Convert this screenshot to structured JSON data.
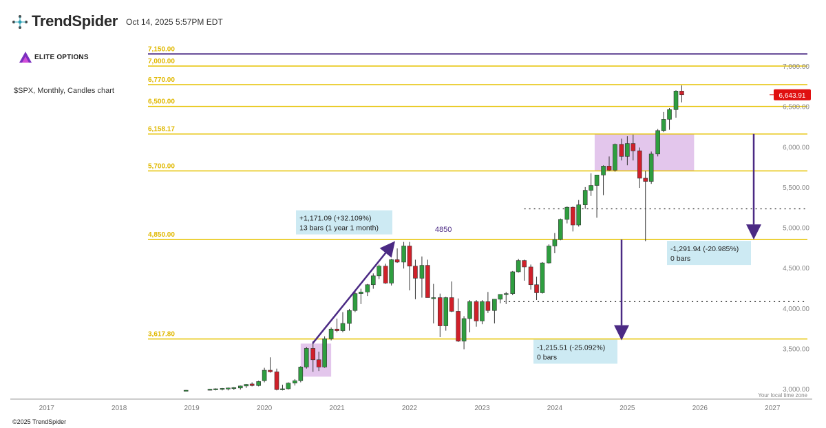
{
  "header": {
    "brand": "TrendSpider",
    "timestamp": "Oct 14, 2025 5:57PM EDT",
    "watermark": "ELITE OPTIONS",
    "symbol_line": "$SPX, Monthly, Candles chart",
    "copyright": "©2025 TrendSpider",
    "local_time_note": "Your local time zone"
  },
  "colors": {
    "up": "#2e9e3f",
    "down": "#d0202a",
    "level_line": "#e6c200",
    "top_line": "#4b2a84",
    "arrow": "#4b2a84",
    "price_tag": "#e01010",
    "measure_box": "#cdeaf3",
    "zone_fill": "#d9b3e6"
  },
  "chart_data": {
    "type": "candlestick",
    "title": "$SPX, Monthly, Candles chart",
    "x_ticks": [
      "2017",
      "2018",
      "2019",
      "2020",
      "2021",
      "2022",
      "2023",
      "2024",
      "2025",
      "2026",
      "2027"
    ],
    "y_ticks": [
      "7,000.00",
      "6,500.00",
      "6,000.00",
      "5,500.00",
      "5,000.00",
      "4,500.00",
      "4,000.00",
      "3,500.00",
      "3,000.00"
    ],
    "ylim": [
      2980,
      7230
    ],
    "last_price": "6,643.91",
    "levels": [
      {
        "value": 7150,
        "label": "7,150.00",
        "kind": "top"
      },
      {
        "value": 7000,
        "label": "7,000.00"
      },
      {
        "value": 6770,
        "label": "6,770.00"
      },
      {
        "value": 6500,
        "label": "6,500.00"
      },
      {
        "value": 6158.17,
        "label": "6,158.17"
      },
      {
        "value": 5700,
        "label": "5,700.00"
      },
      {
        "value": 4850,
        "label": "4,850.00"
      },
      {
        "value": 3617.8,
        "label": "3,617.80"
      }
    ],
    "dotted_levels": [
      {
        "value": 5230,
        "from_date": 2023.58
      },
      {
        "value": 4080,
        "from_date": 2023.3
      }
    ],
    "annotations": {
      "mid_label": "4850",
      "measure_up": [
        "+1,171.09 (+32.109%)",
        "13 bars (1 year 1 month)"
      ],
      "measure_right": [
        "-1,291.94 (-20.985%)",
        "0 bars"
      ],
      "measure_mid": [
        "-1,215.51 (-25.092%)",
        "0 bars"
      ]
    },
    "candles": [
      {
        "t": 2018.92,
        "o": 2980,
        "h": 2985,
        "l": 2980,
        "c": 2982
      },
      {
        "t": 2019.25,
        "o": 2985,
        "h": 3000,
        "l": 2980,
        "c": 2995
      },
      {
        "t": 2019.33,
        "o": 2990,
        "h": 3005,
        "l": 2980,
        "c": 3000
      },
      {
        "t": 2019.42,
        "o": 2995,
        "h": 3010,
        "l": 2980,
        "c": 3005
      },
      {
        "t": 2019.5,
        "o": 3000,
        "h": 3015,
        "l": 2980,
        "c": 3010
      },
      {
        "t": 2019.58,
        "o": 3005,
        "h": 3020,
        "l": 2985,
        "c": 3015
      },
      {
        "t": 2019.67,
        "o": 3010,
        "h": 3040,
        "l": 2990,
        "c": 3035
      },
      {
        "t": 2019.75,
        "o": 3035,
        "h": 3060,
        "l": 3010,
        "c": 3055
      },
      {
        "t": 2019.83,
        "o": 3060,
        "h": 3080,
        "l": 3030,
        "c": 3040
      },
      {
        "t": 2019.92,
        "o": 3040,
        "h": 3100,
        "l": 3030,
        "c": 3090
      },
      {
        "t": 2020.0,
        "o": 3100,
        "h": 3260,
        "l": 3080,
        "c": 3230
      },
      {
        "t": 2020.08,
        "o": 3230,
        "h": 3390,
        "l": 3200,
        "c": 3210
      },
      {
        "t": 2020.17,
        "o": 3210,
        "h": 3250,
        "l": 2980,
        "c": 2990
      },
      {
        "t": 2020.25,
        "o": 2990,
        "h": 3050,
        "l": 2980,
        "c": 3000
      },
      {
        "t": 2020.33,
        "o": 3000,
        "h": 3080,
        "l": 2990,
        "c": 3070
      },
      {
        "t": 2020.42,
        "o": 3070,
        "h": 3120,
        "l": 3040,
        "c": 3100
      },
      {
        "t": 2020.5,
        "o": 3100,
        "h": 3280,
        "l": 3080,
        "c": 3270
      },
      {
        "t": 2020.58,
        "o": 3270,
        "h": 3520,
        "l": 3250,
        "c": 3500
      },
      {
        "t": 2020.67,
        "o": 3500,
        "h": 3590,
        "l": 3210,
        "c": 3360
      },
      {
        "t": 2020.75,
        "o": 3360,
        "h": 3460,
        "l": 3220,
        "c": 3270
      },
      {
        "t": 2020.83,
        "o": 3270,
        "h": 3650,
        "l": 3260,
        "c": 3620
      },
      {
        "t": 2020.92,
        "o": 3620,
        "h": 3760,
        "l": 3600,
        "c": 3740
      },
      {
        "t": 2021.0,
        "o": 3740,
        "h": 3870,
        "l": 3700,
        "c": 3720
      },
      {
        "t": 2021.08,
        "o": 3720,
        "h": 3950,
        "l": 3700,
        "c": 3810
      },
      {
        "t": 2021.17,
        "o": 3810,
        "h": 3990,
        "l": 3720,
        "c": 3970
      },
      {
        "t": 2021.25,
        "o": 3970,
        "h": 4220,
        "l": 3950,
        "c": 4180
      },
      {
        "t": 2021.33,
        "o": 4180,
        "h": 4240,
        "l": 4050,
        "c": 4200
      },
      {
        "t": 2021.42,
        "o": 4200,
        "h": 4300,
        "l": 4150,
        "c": 4290
      },
      {
        "t": 2021.5,
        "o": 4290,
        "h": 4430,
        "l": 4240,
        "c": 4400
      },
      {
        "t": 2021.58,
        "o": 4400,
        "h": 4540,
        "l": 4360,
        "c": 4520
      },
      {
        "t": 2021.67,
        "o": 4520,
        "h": 4550,
        "l": 4300,
        "c": 4310
      },
      {
        "t": 2021.75,
        "o": 4310,
        "h": 4610,
        "l": 4280,
        "c": 4600
      },
      {
        "t": 2021.83,
        "o": 4600,
        "h": 4740,
        "l": 4560,
        "c": 4570
      },
      {
        "t": 2021.92,
        "o": 4570,
        "h": 4820,
        "l": 4490,
        "c": 4770
      },
      {
        "t": 2022.0,
        "o": 4770,
        "h": 4820,
        "l": 4220,
        "c": 4520
      },
      {
        "t": 2022.08,
        "o": 4520,
        "h": 4600,
        "l": 4110,
        "c": 4370
      },
      {
        "t": 2022.17,
        "o": 4370,
        "h": 4640,
        "l": 4130,
        "c": 4530
      },
      {
        "t": 2022.25,
        "o": 4530,
        "h": 4600,
        "l": 4160,
        "c": 4130
      },
      {
        "t": 2022.33,
        "o": 4130,
        "h": 4300,
        "l": 3810,
        "c": 4130
      },
      {
        "t": 2022.42,
        "o": 4130,
        "h": 4180,
        "l": 3640,
        "c": 3780
      },
      {
        "t": 2022.5,
        "o": 3780,
        "h": 4140,
        "l": 3720,
        "c": 4130
      },
      {
        "t": 2022.58,
        "o": 4130,
        "h": 4330,
        "l": 3950,
        "c": 3960
      },
      {
        "t": 2022.67,
        "o": 3960,
        "h": 4120,
        "l": 3580,
        "c": 3590
      },
      {
        "t": 2022.75,
        "o": 3590,
        "h": 3900,
        "l": 3490,
        "c": 3870
      },
      {
        "t": 2022.83,
        "o": 3870,
        "h": 4100,
        "l": 3700,
        "c": 4080
      },
      {
        "t": 2022.92,
        "o": 4080,
        "h": 4100,
        "l": 3770,
        "c": 3840
      },
      {
        "t": 2023.0,
        "o": 3840,
        "h": 4100,
        "l": 3800,
        "c": 4080
      },
      {
        "t": 2023.08,
        "o": 4080,
        "h": 4200,
        "l": 3940,
        "c": 3970
      },
      {
        "t": 2023.17,
        "o": 3970,
        "h": 4110,
        "l": 3810,
        "c": 4110
      },
      {
        "t": 2023.25,
        "o": 4110,
        "h": 4170,
        "l": 4060,
        "c": 4170
      },
      {
        "t": 2023.33,
        "o": 4170,
        "h": 4200,
        "l": 4050,
        "c": 4180
      },
      {
        "t": 2023.42,
        "o": 4180,
        "h": 4460,
        "l": 4160,
        "c": 4450
      },
      {
        "t": 2023.5,
        "o": 4450,
        "h": 4610,
        "l": 4440,
        "c": 4590
      },
      {
        "t": 2023.58,
        "o": 4590,
        "h": 4600,
        "l": 4340,
        "c": 4510
      },
      {
        "t": 2023.67,
        "o": 4510,
        "h": 4540,
        "l": 4230,
        "c": 4290
      },
      {
        "t": 2023.75,
        "o": 4290,
        "h": 4390,
        "l": 4100,
        "c": 4190
      },
      {
        "t": 2023.83,
        "o": 4190,
        "h": 4570,
        "l": 4180,
        "c": 4560
      },
      {
        "t": 2023.92,
        "o": 4560,
        "h": 4790,
        "l": 4550,
        "c": 4770
      },
      {
        "t": 2024.0,
        "o": 4770,
        "h": 4930,
        "l": 4680,
        "c": 4850
      },
      {
        "t": 2024.08,
        "o": 4850,
        "h": 5110,
        "l": 4840,
        "c": 5100
      },
      {
        "t": 2024.17,
        "o": 5100,
        "h": 5260,
        "l": 5050,
        "c": 5250
      },
      {
        "t": 2024.25,
        "o": 5250,
        "h": 5260,
        "l": 4950,
        "c": 5030
      },
      {
        "t": 2024.33,
        "o": 5030,
        "h": 5340,
        "l": 5010,
        "c": 5280
      },
      {
        "t": 2024.42,
        "o": 5280,
        "h": 5500,
        "l": 5230,
        "c": 5460
      },
      {
        "t": 2024.5,
        "o": 5460,
        "h": 5670,
        "l": 5390,
        "c": 5520
      },
      {
        "t": 2024.58,
        "o": 5520,
        "h": 5650,
        "l": 5120,
        "c": 5650
      },
      {
        "t": 2024.67,
        "o": 5650,
        "h": 5770,
        "l": 5400,
        "c": 5760
      },
      {
        "t": 2024.75,
        "o": 5760,
        "h": 5880,
        "l": 5700,
        "c": 5710
      },
      {
        "t": 2024.83,
        "o": 5710,
        "h": 6040,
        "l": 5690,
        "c": 6030
      },
      {
        "t": 2024.92,
        "o": 6030,
        "h": 6100,
        "l": 5830,
        "c": 5880
      },
      {
        "t": 2025.0,
        "o": 5880,
        "h": 6130,
        "l": 5770,
        "c": 6040
      },
      {
        "t": 2025.08,
        "o": 6040,
        "h": 6150,
        "l": 5830,
        "c": 5950
      },
      {
        "t": 2025.17,
        "o": 5950,
        "h": 5990,
        "l": 5490,
        "c": 5610
      },
      {
        "t": 2025.25,
        "o": 5610,
        "h": 5700,
        "l": 4830,
        "c": 5570
      },
      {
        "t": 2025.33,
        "o": 5570,
        "h": 5940,
        "l": 5540,
        "c": 5910
      },
      {
        "t": 2025.42,
        "o": 5910,
        "h": 6220,
        "l": 5880,
        "c": 6200
      },
      {
        "t": 2025.5,
        "o": 6200,
        "h": 6430,
        "l": 6180,
        "c": 6340
      },
      {
        "t": 2025.58,
        "o": 6340,
        "h": 6480,
        "l": 6210,
        "c": 6460
      },
      {
        "t": 2025.67,
        "o": 6460,
        "h": 6700,
        "l": 6360,
        "c": 6690
      },
      {
        "t": 2025.75,
        "o": 6690,
        "h": 6760,
        "l": 6550,
        "c": 6644
      }
    ]
  }
}
